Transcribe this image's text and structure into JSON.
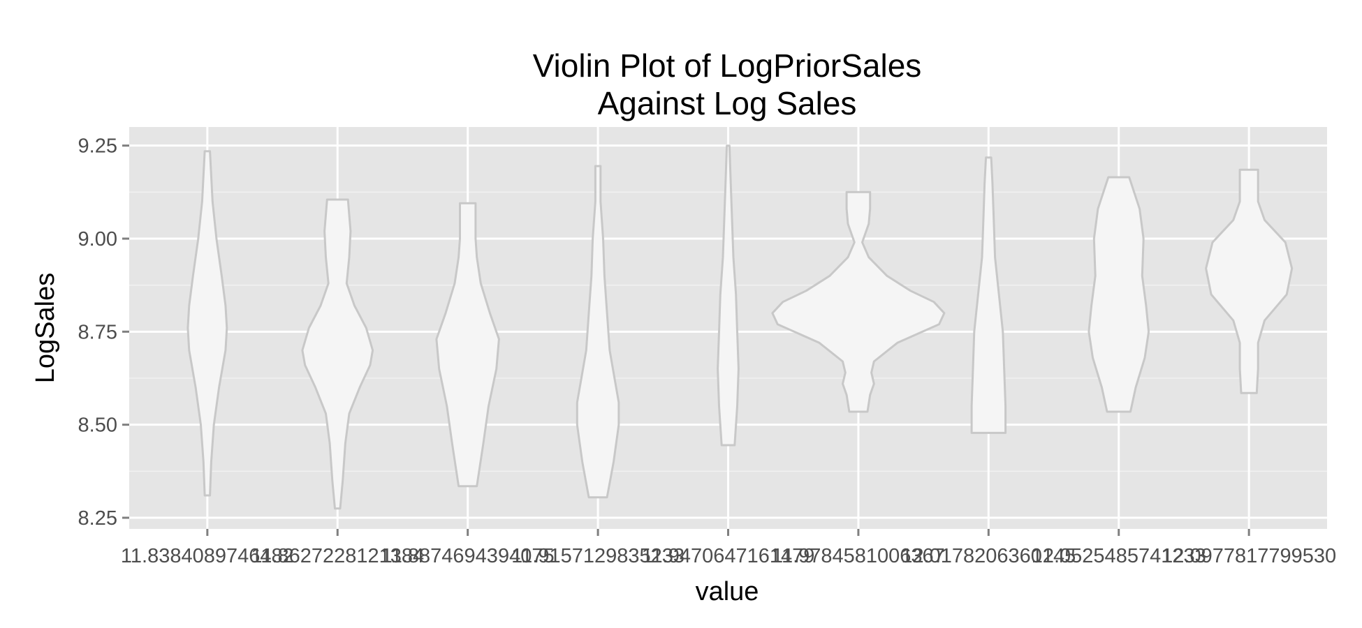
{
  "chart_data": {
    "type": "violin",
    "title_line1": "Violin Plot of LogPriorSales",
    "title_line2": "Against Log Sales",
    "xlabel": "value",
    "ylabel": "LogSales",
    "ylim": [
      8.22,
      9.3
    ],
    "y_ticks": [
      {
        "value": 8.25,
        "label": "8.25"
      },
      {
        "value": 8.5,
        "label": "8.50"
      },
      {
        "value": 8.75,
        "label": "8.75"
      },
      {
        "value": 9.0,
        "label": "9.00"
      },
      {
        "value": 9.25,
        "label": "9.25"
      }
    ],
    "categories": [
      "11.8384089746482",
      "11.8627228121384",
      "11.8874694394075",
      "11.9157129835233",
      "11.9470647161479",
      "11.9784581006367",
      "12.0178206360145",
      "12.0525485741233",
      "12.0977817799530"
    ],
    "grid": true,
    "violins": [
      {
        "ymin": 8.31,
        "ymax": 9.235,
        "profile": [
          [
            8.31,
            0.02
          ],
          [
            8.4,
            0.03
          ],
          [
            8.5,
            0.05
          ],
          [
            8.6,
            0.09
          ],
          [
            8.7,
            0.14
          ],
          [
            8.76,
            0.15
          ],
          [
            8.82,
            0.14
          ],
          [
            8.9,
            0.11
          ],
          [
            9.0,
            0.07
          ],
          [
            9.1,
            0.04
          ],
          [
            9.235,
            0.02
          ]
        ]
      },
      {
        "ymin": 8.275,
        "ymax": 9.105,
        "profile": [
          [
            8.275,
            0.02
          ],
          [
            8.35,
            0.04
          ],
          [
            8.45,
            0.06
          ],
          [
            8.53,
            0.09
          ],
          [
            8.6,
            0.17
          ],
          [
            8.66,
            0.25
          ],
          [
            8.7,
            0.27
          ],
          [
            8.76,
            0.22
          ],
          [
            8.82,
            0.13
          ],
          [
            8.88,
            0.07
          ],
          [
            8.95,
            0.09
          ],
          [
            9.02,
            0.1
          ],
          [
            9.105,
            0.08
          ]
        ]
      },
      {
        "ymin": 8.335,
        "ymax": 9.095,
        "profile": [
          [
            8.335,
            0.07
          ],
          [
            8.45,
            0.12
          ],
          [
            8.55,
            0.16
          ],
          [
            8.65,
            0.22
          ],
          [
            8.73,
            0.24
          ],
          [
            8.8,
            0.17
          ],
          [
            8.88,
            0.1
          ],
          [
            8.95,
            0.07
          ],
          [
            9.0,
            0.06
          ],
          [
            9.05,
            0.06
          ],
          [
            9.095,
            0.06
          ]
        ]
      },
      {
        "ymin": 8.305,
        "ymax": 9.195,
        "profile": [
          [
            8.305,
            0.07
          ],
          [
            8.4,
            0.12
          ],
          [
            8.5,
            0.16
          ],
          [
            8.56,
            0.16
          ],
          [
            8.62,
            0.13
          ],
          [
            8.7,
            0.09
          ],
          [
            8.8,
            0.07
          ],
          [
            8.9,
            0.05
          ],
          [
            9.0,
            0.04
          ],
          [
            9.1,
            0.02
          ],
          [
            9.195,
            0.02
          ]
        ]
      },
      {
        "ymin": 8.445,
        "ymax": 9.25,
        "profile": [
          [
            8.445,
            0.05
          ],
          [
            8.55,
            0.07
          ],
          [
            8.65,
            0.08
          ],
          [
            8.75,
            0.07
          ],
          [
            8.85,
            0.06
          ],
          [
            8.95,
            0.04
          ],
          [
            9.05,
            0.03
          ],
          [
            9.15,
            0.02
          ],
          [
            9.25,
            0.01
          ]
        ]
      },
      {
        "ymin": 8.535,
        "ymax": 9.125,
        "profile": [
          [
            8.535,
            0.07
          ],
          [
            8.58,
            0.09
          ],
          [
            8.61,
            0.12
          ],
          [
            8.64,
            0.1
          ],
          [
            8.67,
            0.12
          ],
          [
            8.72,
            0.3
          ],
          [
            8.77,
            0.62
          ],
          [
            8.8,
            0.66
          ],
          [
            8.83,
            0.58
          ],
          [
            8.86,
            0.4
          ],
          [
            8.9,
            0.22
          ],
          [
            8.95,
            0.08
          ],
          [
            8.99,
            0.03
          ],
          [
            9.04,
            0.08
          ],
          [
            9.08,
            0.09
          ],
          [
            9.125,
            0.09
          ]
        ]
      },
      {
        "ymin": 8.478,
        "ymax": 9.218,
        "profile": [
          [
            8.478,
            0.13
          ],
          [
            8.55,
            0.13
          ],
          [
            8.65,
            0.12
          ],
          [
            8.75,
            0.11
          ],
          [
            8.85,
            0.08
          ],
          [
            8.95,
            0.05
          ],
          [
            9.05,
            0.04
          ],
          [
            9.15,
            0.03
          ],
          [
            9.218,
            0.02
          ]
        ]
      },
      {
        "ymin": 8.535,
        "ymax": 9.165,
        "profile": [
          [
            8.535,
            0.09
          ],
          [
            8.6,
            0.13
          ],
          [
            8.68,
            0.2
          ],
          [
            8.75,
            0.23
          ],
          [
            8.82,
            0.21
          ],
          [
            8.9,
            0.18
          ],
          [
            9.0,
            0.19
          ],
          [
            9.08,
            0.16
          ],
          [
            9.165,
            0.08
          ]
        ]
      },
      {
        "ymin": 8.585,
        "ymax": 9.185,
        "profile": [
          [
            8.585,
            0.06
          ],
          [
            8.65,
            0.07
          ],
          [
            8.72,
            0.07
          ],
          [
            8.78,
            0.12
          ],
          [
            8.85,
            0.29
          ],
          [
            8.92,
            0.33
          ],
          [
            8.99,
            0.28
          ],
          [
            9.05,
            0.12
          ],
          [
            9.1,
            0.07
          ],
          [
            9.185,
            0.07
          ]
        ]
      }
    ]
  }
}
